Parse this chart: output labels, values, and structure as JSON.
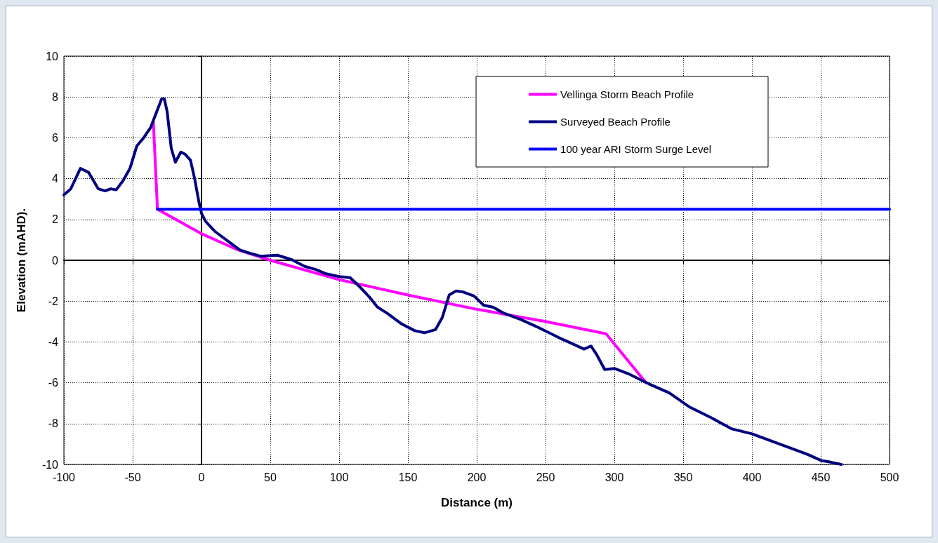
{
  "chart_data": {
    "type": "line",
    "xlabel": "Distance (m)",
    "ylabel": "Elevation (mAHD).",
    "xlim": [
      -100,
      500
    ],
    "ylim": [
      -10,
      10
    ],
    "xticks": [
      -100,
      -50,
      0,
      50,
      100,
      150,
      200,
      250,
      300,
      350,
      400,
      450,
      500
    ],
    "yticks": [
      -10,
      -8,
      -6,
      -4,
      -2,
      0,
      2,
      4,
      6,
      8,
      10
    ],
    "grid": true,
    "legend": "top right",
    "marker": "none",
    "line_style": "solid",
    "series": [
      {
        "name": "Vellinga Storm Beach Profile",
        "color": "#ff00ff",
        "x": [
          -35,
          -32,
          0,
          25,
          50,
          100,
          150,
          200,
          250,
          294,
          323
        ],
        "values": [
          6.8,
          2.5,
          1.3,
          0.55,
          0.0,
          -0.95,
          -1.7,
          -2.4,
          -3.0,
          -3.6,
          -6.0
        ]
      },
      {
        "name": "Surveyed Beach Profile",
        "color": "#000080",
        "x": [
          -100,
          -95,
          -88,
          -82,
          -75,
          -70,
          -66,
          -62,
          -57,
          -52,
          -47,
          -42,
          -37,
          -33,
          -29,
          -27,
          -25,
          -22,
          -19,
          -15,
          -12,
          -8,
          -5,
          -2,
          0,
          3,
          10,
          20,
          28,
          35,
          43,
          55,
          65,
          75,
          83,
          90,
          100,
          108,
          115,
          122,
          128,
          135,
          145,
          155,
          162,
          170,
          175,
          180,
          185,
          190,
          198,
          205,
          212,
          220,
          232,
          245,
          260,
          270,
          278,
          283,
          287,
          293,
          300,
          310,
          325,
          340,
          355,
          370,
          385,
          400,
          410,
          420,
          430,
          440,
          450,
          458,
          465
        ],
        "values": [
          3.2,
          3.5,
          4.5,
          4.3,
          3.5,
          3.4,
          3.5,
          3.45,
          3.9,
          4.5,
          5.6,
          6.0,
          6.5,
          7.2,
          7.9,
          7.9,
          7.3,
          5.5,
          4.8,
          5.3,
          5.2,
          4.9,
          4.0,
          2.9,
          2.3,
          1.9,
          1.4,
          0.9,
          0.5,
          0.35,
          0.2,
          0.25,
          0.05,
          -0.3,
          -0.45,
          -0.65,
          -0.8,
          -0.85,
          -1.3,
          -1.8,
          -2.3,
          -2.6,
          -3.1,
          -3.45,
          -3.55,
          -3.4,
          -2.8,
          -1.7,
          -1.5,
          -1.55,
          -1.75,
          -2.2,
          -2.3,
          -2.6,
          -2.9,
          -3.3,
          -3.8,
          -4.1,
          -4.35,
          -4.2,
          -4.6,
          -5.35,
          -5.3,
          -5.55,
          -6.05,
          -6.5,
          -7.2,
          -7.7,
          -8.25,
          -8.5,
          -8.75,
          -9.0,
          -9.25,
          -9.5,
          -9.8,
          -9.9,
          -10.0
        ]
      },
      {
        "name": "100 year ARI Storm Surge Level",
        "color": "#0000ff",
        "x": [
          -32,
          500
        ],
        "values": [
          2.5,
          2.5
        ]
      }
    ]
  }
}
